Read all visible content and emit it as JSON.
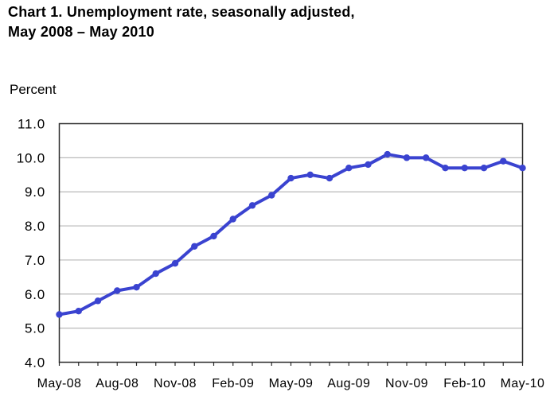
{
  "header": {
    "title_line1": "Chart 1. Unemployment rate, seasonally adjusted,",
    "title_line2": "May 2008 – May 2010"
  },
  "chart_data": {
    "type": "line",
    "title": "Chart 1. Unemployment rate, seasonally adjusted, May 2008 – May 2010",
    "unit_label": "Percent",
    "x": [
      "May-08",
      "Jun-08",
      "Jul-08",
      "Aug-08",
      "Sep-08",
      "Oct-08",
      "Nov-08",
      "Dec-08",
      "Jan-09",
      "Feb-09",
      "Mar-09",
      "Apr-09",
      "May-09",
      "Jun-09",
      "Jul-09",
      "Aug-09",
      "Sep-09",
      "Oct-09",
      "Nov-09",
      "Dec-09",
      "Jan-10",
      "Feb-10",
      "Mar-10",
      "Apr-10",
      "May-10"
    ],
    "values": [
      5.4,
      5.5,
      5.8,
      6.1,
      6.2,
      6.6,
      6.9,
      7.4,
      7.7,
      8.2,
      8.6,
      8.9,
      9.4,
      9.5,
      9.4,
      9.7,
      9.8,
      10.1,
      10.0,
      10.0,
      9.7,
      9.7,
      9.7,
      9.9,
      9.7
    ],
    "series_name": "Unemployment rate (percent)",
    "x_tick_labels": [
      "May-08",
      "Aug-08",
      "Nov-08",
      "Feb-09",
      "May-09",
      "Aug-09",
      "Nov-09",
      "Feb-10",
      "May-10"
    ],
    "x_tick_label_every": 3,
    "y_ticks": [
      4.0,
      5.0,
      6.0,
      7.0,
      8.0,
      9.0,
      10.0,
      11.0
    ],
    "y_tick_labels": [
      "4.0",
      "5.0",
      "6.0",
      "7.0",
      "8.0",
      "9.0",
      "10.0",
      "11.0"
    ],
    "ylim": [
      4.0,
      11.0
    ],
    "grid": "horizontal",
    "legend": "none",
    "line_color": "#3a43d0",
    "gridline_color": "#b9b9b9",
    "axis_color": "#2b2b2b",
    "text_color": "#000000"
  }
}
